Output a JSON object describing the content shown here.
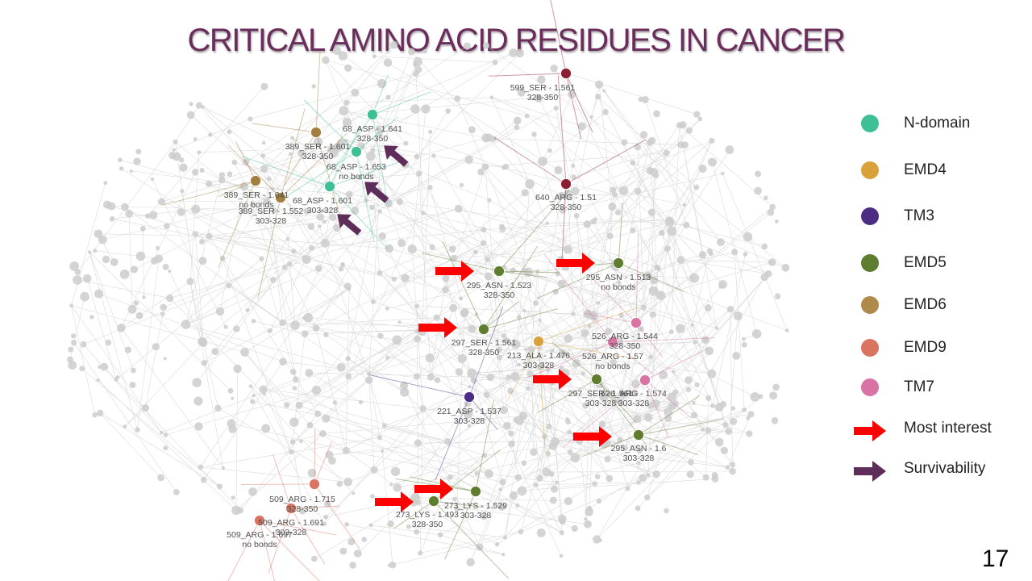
{
  "title": "CRITICAL AMINO ACID RESIDUES IN CANCER",
  "page_number": "17",
  "legend": [
    {
      "label": "N-domain",
      "color": "#3fbf96",
      "kind": "dot"
    },
    {
      "label": "EMD4",
      "color": "#d9a13b",
      "kind": "dot"
    },
    {
      "label": "TM3",
      "color": "#4b2e83",
      "kind": "dot"
    },
    {
      "label": "EMD5",
      "color": "#5f7d2e",
      "kind": "dot"
    },
    {
      "label": "EMD6",
      "color": "#b08a4a",
      "kind": "dot"
    },
    {
      "label": "EMD9",
      "color": "#d87460",
      "kind": "dot"
    },
    {
      "label": "TM7",
      "color": "#d973a3",
      "kind": "dot"
    },
    {
      "label": "Most interest",
      "color": "#ff0000",
      "kind": "arrow"
    },
    {
      "label": "Survivability",
      "color": "#5e2d5a",
      "kind": "arrow"
    }
  ],
  "nodes": [
    {
      "group": "N-domain",
      "lines": [
        "68_ASP - 1.641",
        "328-350"
      ]
    },
    {
      "group": "N-domain",
      "lines": [
        "68_ASP - 1.653",
        "no bonds"
      ]
    },
    {
      "group": "N-domain",
      "lines": [
        "68_ASP - 1.601",
        "303-328"
      ]
    },
    {
      "group": "EMD6",
      "lines": [
        "389_SER - 1.601",
        "328-350"
      ]
    },
    {
      "group": "EMD6",
      "lines": [
        "389_SER - 1.641",
        "no bonds"
      ]
    },
    {
      "group": "EMD6",
      "lines": [
        "389_SER - 1.552",
        "303-328"
      ]
    },
    {
      "group": "other",
      "lines": [
        "599_SER - 1.561",
        "328-350"
      ]
    },
    {
      "group": "other",
      "lines": [
        "640_ARG - 1.51",
        "328-350"
      ]
    },
    {
      "group": "EMD5",
      "lines": [
        "295_ASN - 1.523",
        "328-350"
      ]
    },
    {
      "group": "EMD5",
      "lines": [
        "295_ASN - 1.513",
        "no bonds"
      ]
    },
    {
      "group": "EMD5",
      "lines": [
        "297_SER - 1.561",
        "328-350"
      ]
    },
    {
      "group": "EMD4",
      "lines": [
        "213_ALA - 1.476",
        "303-328"
      ]
    },
    {
      "group": "TM7",
      "lines": [
        "526_ARG - 1.544",
        "328-350"
      ]
    },
    {
      "group": "TM7",
      "lines": [
        "526_ARG - 1.57",
        "no bonds"
      ]
    },
    {
      "group": "EMD5",
      "lines": [
        "297_SER - 1.561",
        "303-328"
      ]
    },
    {
      "group": "TM7",
      "lines": [
        "526_ARG - 1.574",
        "303-328"
      ]
    },
    {
      "group": "TM3",
      "lines": [
        "221_ASP - 1.537",
        "303-328"
      ]
    },
    {
      "group": "EMD5",
      "lines": [
        "295_ASN - 1.6",
        "303-328"
      ]
    },
    {
      "group": "EMD5",
      "lines": [
        "273_LYS - 1.529",
        "303-328"
      ]
    },
    {
      "group": "EMD5",
      "lines": [
        "273_LYS - 1.493",
        "328-350"
      ]
    },
    {
      "group": "EMD9",
      "lines": [
        "509_ARG - 1.715",
        "328-350"
      ]
    },
    {
      "group": "EMD9",
      "lines": [
        "509_ARG - 1.691",
        "303-328"
      ]
    },
    {
      "group": "EMD9",
      "lines": [
        "509_ARG - 1.697",
        "no bonds"
      ]
    }
  ],
  "node_colors": {
    "N-domain": "#3fbf96",
    "EMD4": "#d9a13b",
    "TM3": "#4b2e83",
    "EMD5": "#5f7d2e",
    "EMD6": "#a37e3e",
    "EMD9": "#d87460",
    "TM7": "#d973a3",
    "other": "#8b1e32"
  },
  "markers": [
    {
      "type": "most-interest",
      "target": "295_ASN - 1.523"
    },
    {
      "type": "most-interest",
      "target": "295_ASN - 1.513"
    },
    {
      "type": "most-interest",
      "target": "297_SER - 1.561 (328-350)"
    },
    {
      "type": "most-interest",
      "target": "297_SER - 1.561 (303-328)"
    },
    {
      "type": "most-interest",
      "target": "295_ASN - 1.6"
    },
    {
      "type": "most-interest",
      "target": "273_LYS - 1.529"
    },
    {
      "type": "most-interest",
      "target": "273_LYS - 1.493"
    },
    {
      "type": "survivability",
      "target": "68_ASP - 1.641"
    },
    {
      "type": "survivability",
      "target": "68_ASP - 1.653"
    },
    {
      "type": "survivability",
      "target": "68_ASP - 1.601"
    }
  ]
}
